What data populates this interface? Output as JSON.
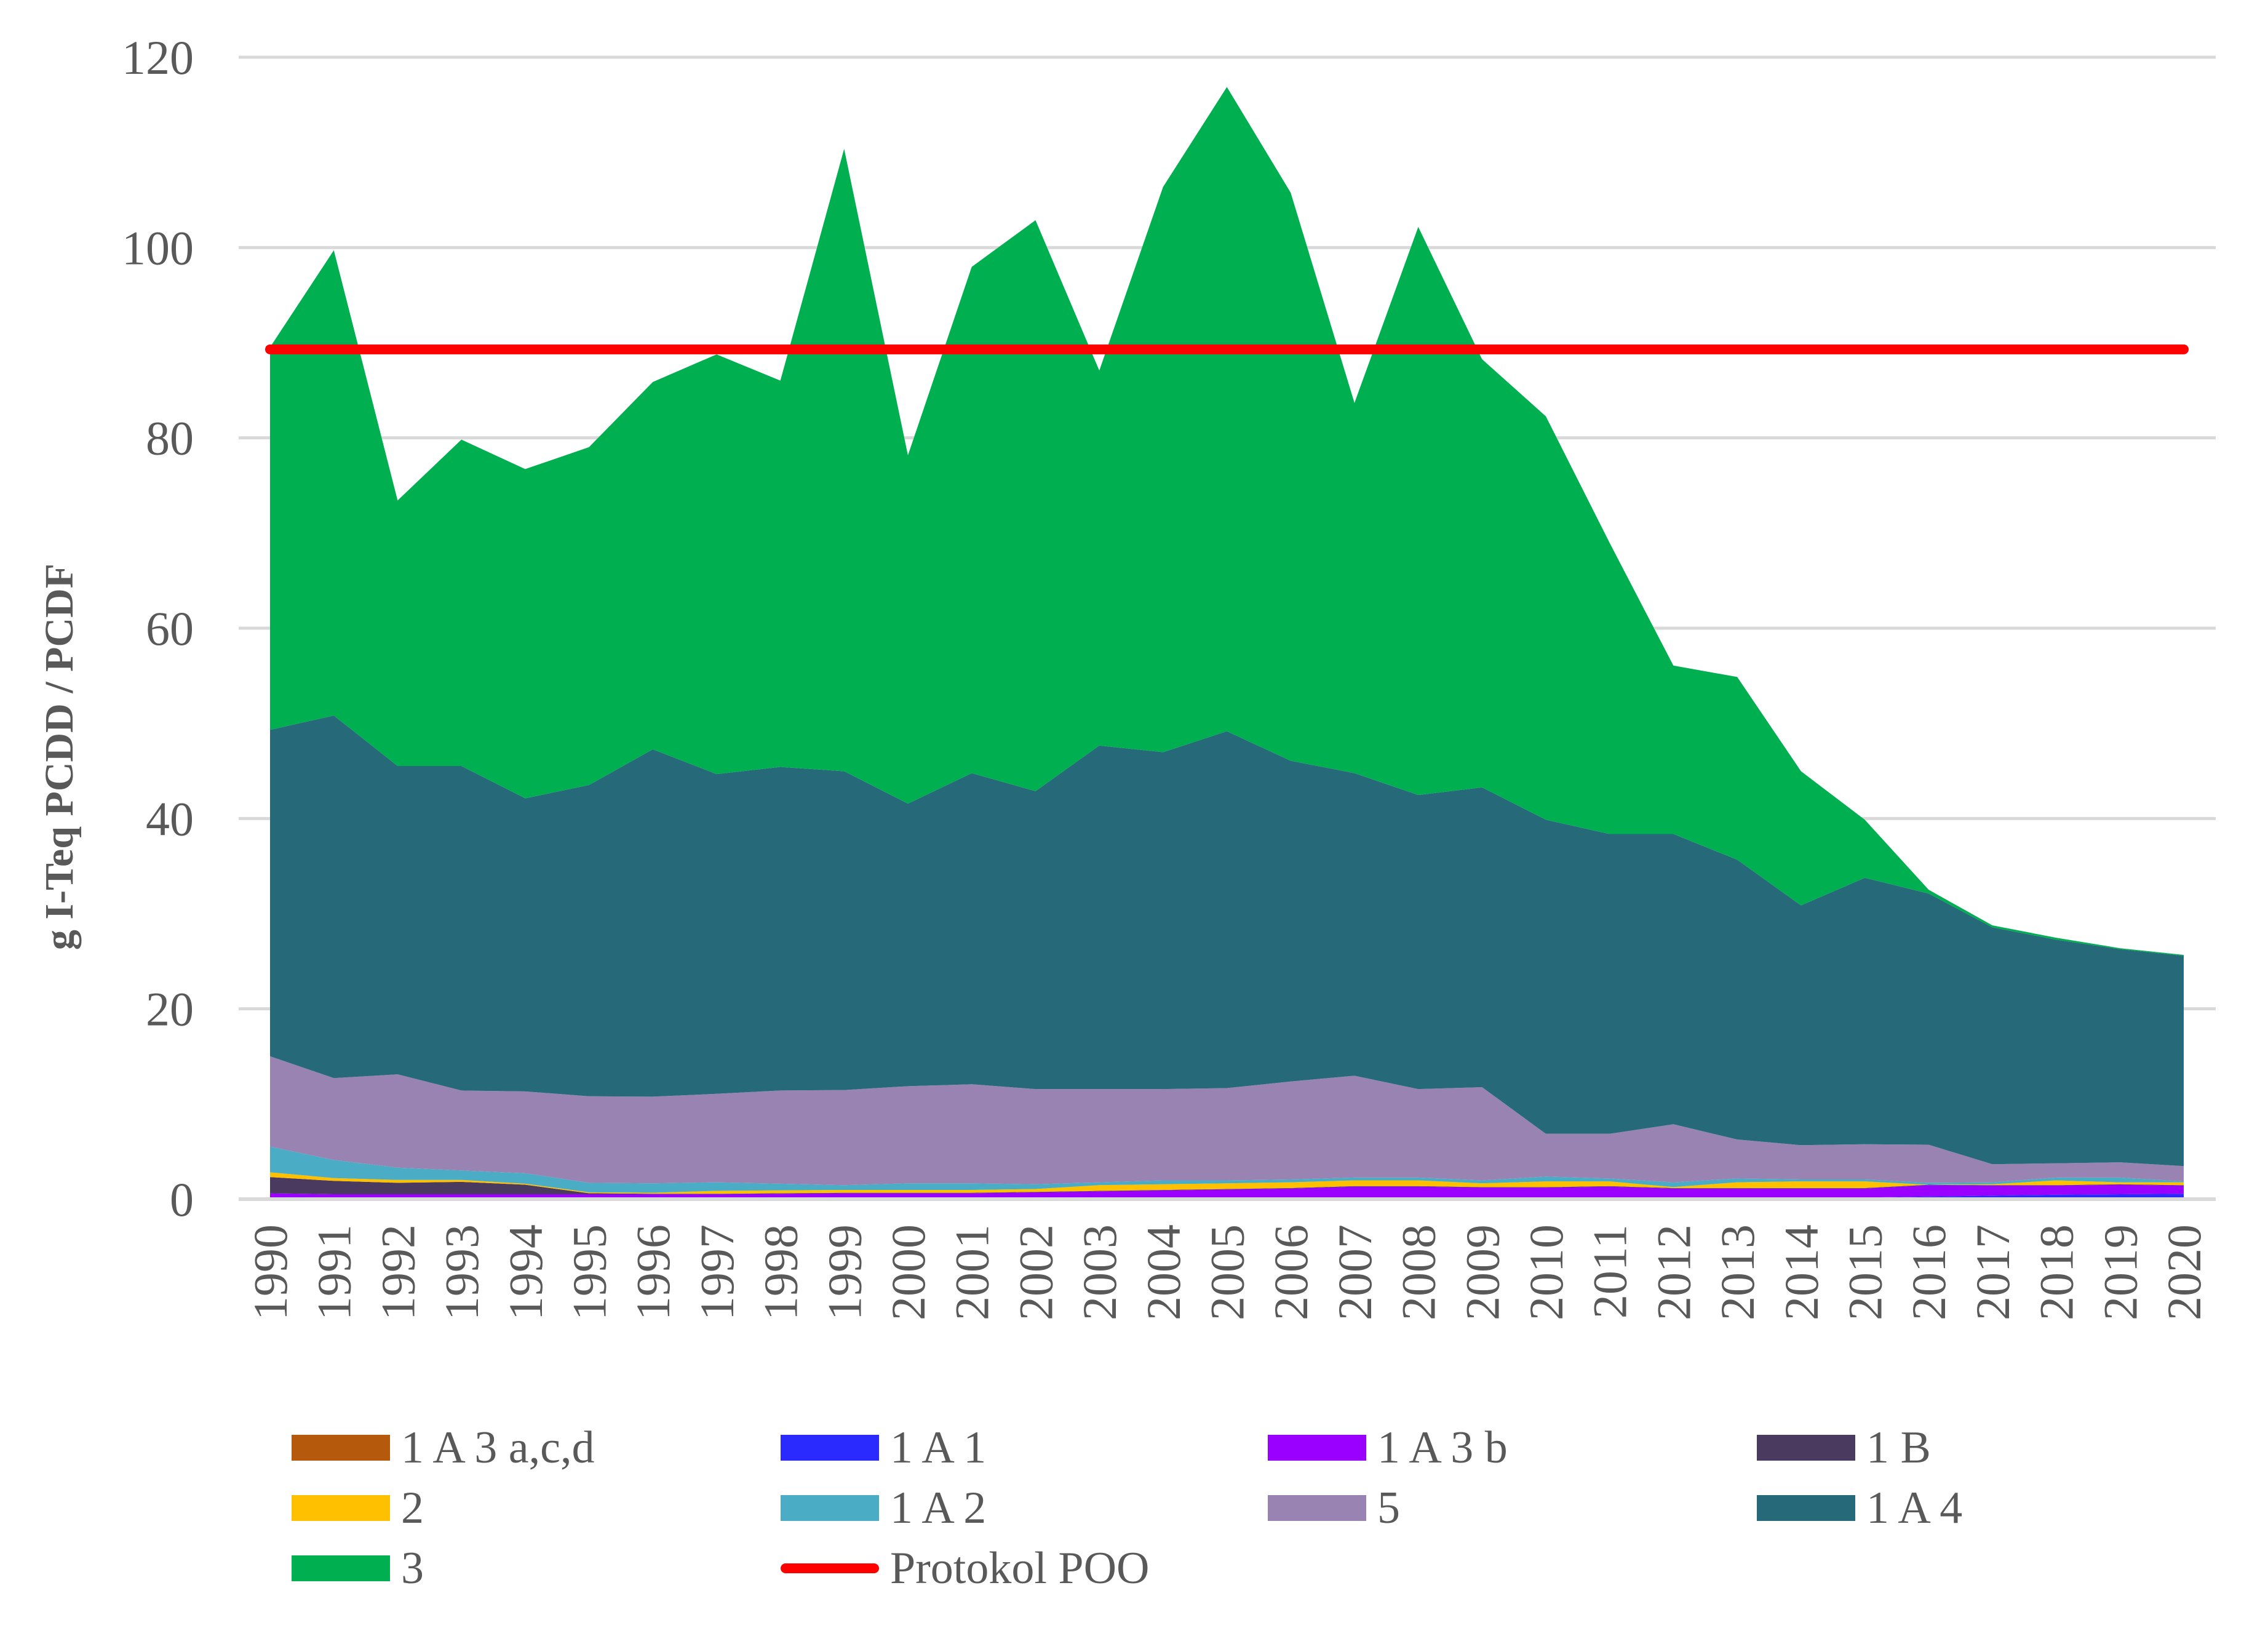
{
  "chart_data": {
    "type": "area",
    "stacked": true,
    "title": "",
    "xlabel": "",
    "ylabel": "g I-Teq PCDD / PCDF",
    "ylim": [
      0,
      120
    ],
    "yticks": [
      0,
      20,
      40,
      60,
      80,
      100,
      120
    ],
    "grid": true,
    "legend_position": "bottom",
    "categories": [
      "1990",
      "1991",
      "1992",
      "1993",
      "1994",
      "1995",
      "1996",
      "1997",
      "1998",
      "1999",
      "2000",
      "2001",
      "2002",
      "2003",
      "2004",
      "2005",
      "2006",
      "2007",
      "2008",
      "2009",
      "2010",
      "2011",
      "2012",
      "2013",
      "2014",
      "2015",
      "2016",
      "2017",
      "2018",
      "2019",
      "2020"
    ],
    "series": [
      {
        "name": "1 A 3 a,c,d",
        "color": "#B5590C",
        "values": [
          0.02,
          0.02,
          0.02,
          0.02,
          0.02,
          0.02,
          0.02,
          0.02,
          0.02,
          0.02,
          0.02,
          0.02,
          0.02,
          0.02,
          0.02,
          0.02,
          0.02,
          0.02,
          0.02,
          0.02,
          0.02,
          0.02,
          0.02,
          0.02,
          0.02,
          0.02,
          0.02,
          0.02,
          0.02,
          0.02,
          0.02
        ]
      },
      {
        "name": "1 A 1",
        "color": "#2A2AFF",
        "values": [
          0.15,
          0.15,
          0.15,
          0.15,
          0.15,
          0.15,
          0.15,
          0.15,
          0.15,
          0.15,
          0.15,
          0.15,
          0.15,
          0.15,
          0.15,
          0.15,
          0.15,
          0.15,
          0.15,
          0.15,
          0.15,
          0.15,
          0.15,
          0.15,
          0.15,
          0.15,
          0.25,
          0.35,
          0.45,
          0.5,
          0.55
        ]
      },
      {
        "name": "1 A 3 b",
        "color": "#9900FF",
        "values": [
          0.45,
          0.35,
          0.35,
          0.35,
          0.35,
          0.35,
          0.35,
          0.35,
          0.4,
          0.45,
          0.45,
          0.45,
          0.55,
          0.65,
          0.75,
          0.85,
          0.95,
          1.15,
          1.15,
          1.05,
          1.05,
          1.15,
          0.95,
          0.95,
          0.95,
          0.95,
          1.2,
          1.05,
          0.95,
          1.0,
          0.85
        ]
      },
      {
        "name": "1 B",
        "color": "#4B3A60",
        "values": [
          1.7,
          1.4,
          1.2,
          1.3,
          1.0,
          0.1,
          0.05,
          0.05,
          0.05,
          0.05,
          0.05,
          0.05,
          0.05,
          0.05,
          0.05,
          0.05,
          0.05,
          0.05,
          0.05,
          0.05,
          0.05,
          0.05,
          0.05,
          0.05,
          0.05,
          0.05,
          0.05,
          0.05,
          0.05,
          0.05,
          0.05
        ]
      },
      {
        "name": "2",
        "color": "#FFC000",
        "values": [
          0.5,
          0.3,
          0.3,
          0.2,
          0.1,
          0.1,
          0.1,
          0.3,
          0.3,
          0.3,
          0.3,
          0.3,
          0.3,
          0.6,
          0.6,
          0.6,
          0.6,
          0.6,
          0.6,
          0.4,
          0.6,
          0.5,
          0.1,
          0.6,
          0.7,
          0.7,
          0.0,
          0.1,
          0.5,
          0.2,
          0.3
        ]
      },
      {
        "name": "1 A 2",
        "color": "#4BACC6",
        "values": [
          2.7,
          1.9,
          1.3,
          1.0,
          1.1,
          1.0,
          1.0,
          0.9,
          0.7,
          0.5,
          0.7,
          0.7,
          0.5,
          0.3,
          0.4,
          0.3,
          0.3,
          0.3,
          0.3,
          0.3,
          0.5,
          0.3,
          0.5,
          0.4,
          0.2,
          0.2,
          0.2,
          0.2,
          0.3,
          0.5,
          0.1
        ]
      },
      {
        "name": "5",
        "color": "#9983B3",
        "values": [
          9.5,
          8.6,
          9.8,
          8.4,
          8.6,
          9.1,
          9.1,
          9.3,
          9.8,
          10.0,
          10.2,
          10.4,
          10.0,
          9.8,
          9.6,
          9.7,
          10.3,
          10.7,
          9.3,
          9.8,
          4.5,
          4.7,
          6.1,
          4.1,
          3.6,
          3.7,
          4.0,
          1.9,
          1.5,
          1.6,
          1.6
        ]
      },
      {
        "name": "1 A 4",
        "color": "#266A7A",
        "values": [
          34.3,
          38.1,
          32.4,
          34.1,
          30.8,
          32.7,
          36.5,
          33.6,
          34.0,
          33.5,
          29.7,
          32.7,
          31.3,
          36.1,
          35.4,
          37.5,
          33.7,
          31.8,
          30.9,
          31.5,
          33.0,
          31.5,
          30.5,
          29.4,
          25.2,
          28.0,
          26.4,
          24.9,
          23.5,
          22.4,
          22.1
        ]
      },
      {
        "name": "3",
        "color": "#00AF50",
        "values": [
          40.2,
          48.9,
          27.9,
          34.3,
          34.6,
          35.5,
          38.6,
          44.1,
          40.6,
          65.4,
          36.6,
          53.2,
          60.0,
          39.4,
          59.4,
          67.7,
          59.7,
          38.9,
          59.7,
          45.0,
          42.4,
          30.6,
          17.7,
          19.2,
          14.1,
          6.1,
          0.4,
          0.2,
          0.2,
          0.1,
          0.1
        ]
      }
    ],
    "reference_line": {
      "name": "Protokol POO",
      "color": "#FF0000",
      "value": 89.3
    },
    "legend": [
      {
        "label": "1 A 3 a,c,d",
        "color": "#B5590C",
        "kind": "box"
      },
      {
        "label": "1 A 1",
        "color": "#2A2AFF",
        "kind": "box"
      },
      {
        "label": "1 A 3 b",
        "color": "#9900FF",
        "kind": "box"
      },
      {
        "label": "1 B",
        "color": "#4B3A60",
        "kind": "box"
      },
      {
        "label": "2",
        "color": "#FFC000",
        "kind": "box"
      },
      {
        "label": "1 A 2",
        "color": "#4BACC6",
        "kind": "box"
      },
      {
        "label": "5",
        "color": "#9983B3",
        "kind": "box"
      },
      {
        "label": "1 A 4",
        "color": "#266A7A",
        "kind": "box"
      },
      {
        "label": "3",
        "color": "#00AF50",
        "kind": "box"
      },
      {
        "label": "Protokol POO",
        "color": "#FF0000",
        "kind": "line"
      }
    ]
  }
}
